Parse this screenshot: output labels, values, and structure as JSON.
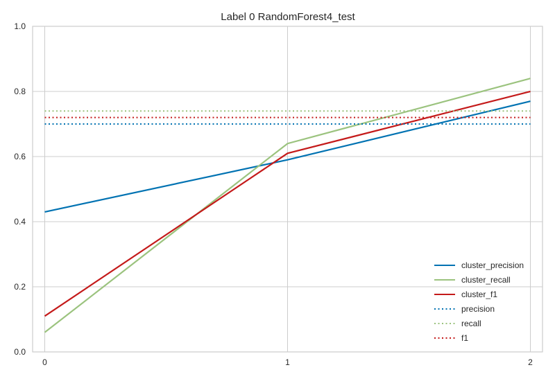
{
  "chart_data": {
    "type": "line",
    "title": "Label 0 RandomForest4_test",
    "xlabel": "",
    "ylabel": "",
    "x": [
      0,
      1,
      2
    ],
    "x_ticks": [
      "0",
      "1",
      "2"
    ],
    "xlim": [
      -0.05,
      2.05
    ],
    "ylim": [
      0.0,
      1.0
    ],
    "y_ticks": [
      "0.0",
      "0.2",
      "0.4",
      "0.6",
      "0.8",
      "1.0"
    ],
    "grid": true,
    "legend_position": "lower-right",
    "series": [
      {
        "name": "cluster_precision",
        "values": [
          0.43,
          0.59,
          0.77
        ],
        "color": "#0072b2",
        "style": "solid"
      },
      {
        "name": "cluster_recall",
        "values": [
          0.06,
          0.64,
          0.84
        ],
        "color": "#9bc37e",
        "style": "solid"
      },
      {
        "name": "cluster_f1",
        "values": [
          0.11,
          0.61,
          0.8
        ],
        "color": "#c41a1a",
        "style": "solid"
      },
      {
        "name": "precision",
        "values": [
          0.7,
          0.7,
          0.7
        ],
        "color": "#0072b2",
        "style": "dotted"
      },
      {
        "name": "recall",
        "values": [
          0.74,
          0.74,
          0.74
        ],
        "color": "#9bc37e",
        "style": "dotted"
      },
      {
        "name": "f1",
        "values": [
          0.72,
          0.72,
          0.72
        ],
        "color": "#c41a1a",
        "style": "dotted"
      }
    ]
  }
}
